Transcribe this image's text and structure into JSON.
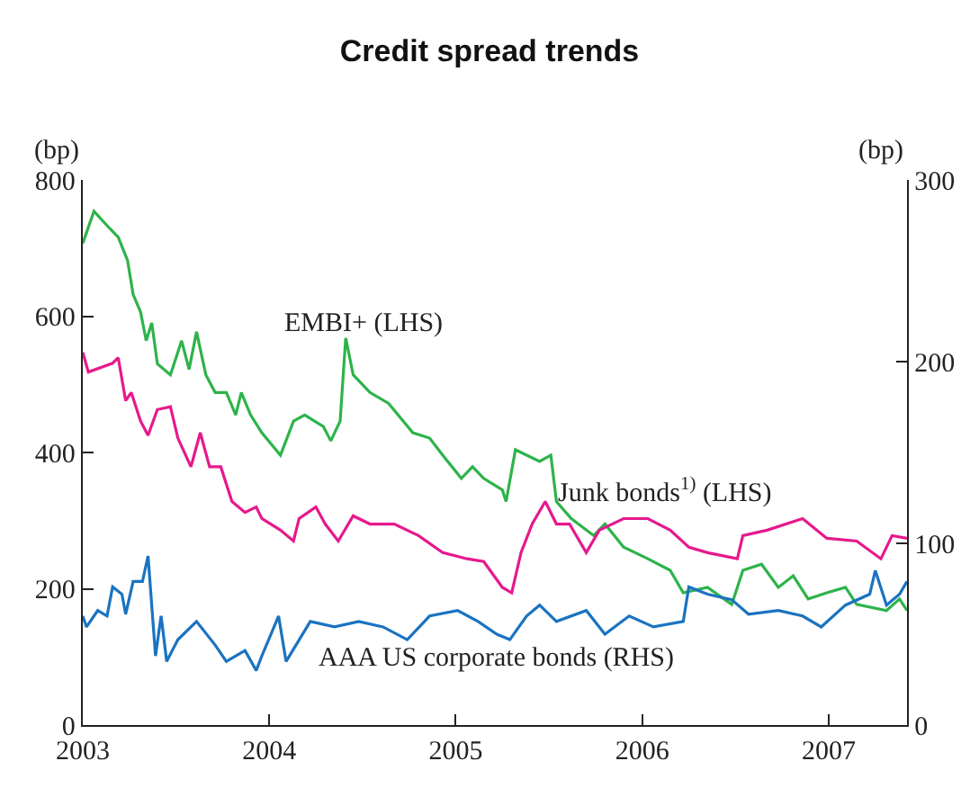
{
  "chart_data": {
    "type": "line",
    "title": "Credit spread trends",
    "ylabel": "(bp)",
    "y2label": "(bp)",
    "xlim": [
      2003,
      2007.42
    ],
    "xticks": [
      2003,
      2004,
      2005,
      2006,
      2007
    ],
    "ylim": [
      0,
      800
    ],
    "yticks": [
      0,
      200,
      400,
      600,
      800
    ],
    "y2lim": [
      0,
      300
    ],
    "y2ticks": [
      0,
      100,
      200,
      300
    ],
    "grid": false,
    "legend": false,
    "marker": "none",
    "line_style": "solid",
    "series": [
      {
        "name": "EMBI+ (LHS)",
        "color": "#2db34a",
        "x": [
          2003.0,
          2003.06,
          2003.13,
          2003.19,
          2003.24,
          2003.27,
          2003.31,
          2003.34,
          2003.37,
          2003.4,
          2003.47,
          2003.53,
          2003.57,
          2003.61,
          2003.66,
          2003.71,
          2003.77,
          2003.82,
          2003.85,
          2003.9,
          2003.96,
          2004.06,
          2004.13,
          2004.19,
          2004.29,
          2004.33,
          2004.38,
          2004.41,
          2004.45,
          2004.54,
          2004.64,
          2004.77,
          2004.86,
          2004.93,
          2005.03,
          2005.09,
          2005.15,
          2005.25,
          2005.27,
          2005.32,
          2005.38,
          2005.45,
          2005.51,
          2005.54,
          2005.62,
          2005.74,
          2005.8,
          2005.9,
          2006.03,
          2006.15,
          2006.22,
          2006.35,
          2006.48,
          2006.54,
          2006.64,
          2006.73,
          2006.81,
          2006.89,
          2006.99,
          2007.09,
          2007.15,
          2007.31,
          2007.38,
          2007.42
        ],
        "values": [
          707,
          754,
          733,
          716,
          682,
          632,
          606,
          564,
          590,
          530,
          514,
          564,
          522,
          577,
          514,
          488,
          488,
          455,
          488,
          455,
          429,
          396,
          446,
          455,
          438,
          417,
          446,
          568,
          514,
          488,
          472,
          429,
          421,
          396,
          362,
          379,
          362,
          345,
          328,
          404,
          396,
          387,
          396,
          328,
          303,
          278,
          295,
          261,
          244,
          227,
          194,
          202,
          177,
          227,
          236,
          202,
          219,
          185,
          194,
          202,
          177,
          168,
          185,
          168
        ]
      },
      {
        "name": "Junk bonds$^{1)}$ (LHS)",
        "color": "#e6198c",
        "x": [
          2003.0,
          2003.03,
          2003.16,
          2003.19,
          2003.23,
          2003.26,
          2003.31,
          2003.35,
          2003.4,
          2003.47,
          2003.51,
          2003.58,
          2003.63,
          2003.68,
          2003.74,
          2003.8,
          2003.87,
          2003.93,
          2003.96,
          2004.06,
          2004.13,
          2004.16,
          2004.25,
          2004.3,
          2004.37,
          2004.45,
          2004.54,
          2004.67,
          2004.8,
          2004.93,
          2005.06,
          2005.15,
          2005.25,
          2005.3,
          2005.35,
          2005.41,
          2005.48,
          2005.54,
          2005.61,
          2005.7,
          2005.77,
          2005.9,
          2006.03,
          2006.15,
          2006.25,
          2006.35,
          2006.51,
          2006.54,
          2006.67,
          2006.86,
          2006.99,
          2007.15,
          2007.28,
          2007.34,
          2007.42
        ],
        "values": [
          547,
          518,
          531,
          539,
          476,
          488,
          446,
          425,
          463,
          467,
          421,
          379,
          429,
          379,
          379,
          328,
          312,
          320,
          303,
          286,
          270,
          303,
          320,
          295,
          270,
          307,
          295,
          295,
          278,
          253,
          244,
          240,
          202,
          194,
          253,
          295,
          328,
          295,
          295,
          253,
          286,
          303,
          303,
          286,
          261,
          253,
          244,
          278,
          286,
          303,
          274,
          270,
          244,
          278,
          274
        ]
      },
      {
        "name": "AAA US corporate bonds (RHS)",
        "color": "#1a73c0",
        "axis": "y2",
        "x": [
          2003.0,
          2003.02,
          2003.08,
          2003.13,
          2003.16,
          2003.21,
          2003.23,
          2003.27,
          2003.32,
          2003.35,
          2003.39,
          2003.42,
          2003.45,
          2003.51,
          2003.61,
          2003.71,
          2003.77,
          2003.87,
          2003.93,
          2003.96,
          2004.05,
          2004.09,
          2004.22,
          2004.35,
          2004.48,
          2004.61,
          2004.74,
          2004.86,
          2005.01,
          2005.12,
          2005.22,
          2005.29,
          2005.38,
          2005.45,
          2005.54,
          2005.7,
          2005.8,
          2005.93,
          2006.06,
          2006.22,
          2006.25,
          2006.35,
          2006.48,
          2006.57,
          2006.73,
          2006.86,
          2006.96,
          2007.09,
          2007.22,
          2007.25,
          2007.31,
          2007.38,
          2007.42
        ],
        "values": [
          60,
          54,
          63,
          60,
          76,
          72,
          61,
          79,
          79,
          93,
          38,
          60,
          35,
          47,
          57,
          44,
          35,
          41,
          30,
          38,
          60,
          35,
          57,
          54,
          57,
          54,
          47,
          60,
          63,
          57,
          50,
          47,
          60,
          66,
          57,
          63,
          50,
          60,
          54,
          57,
          76,
          72,
          69,
          61,
          63,
          60,
          54,
          66,
          72,
          85,
          66,
          72,
          79
        ]
      }
    ]
  }
}
